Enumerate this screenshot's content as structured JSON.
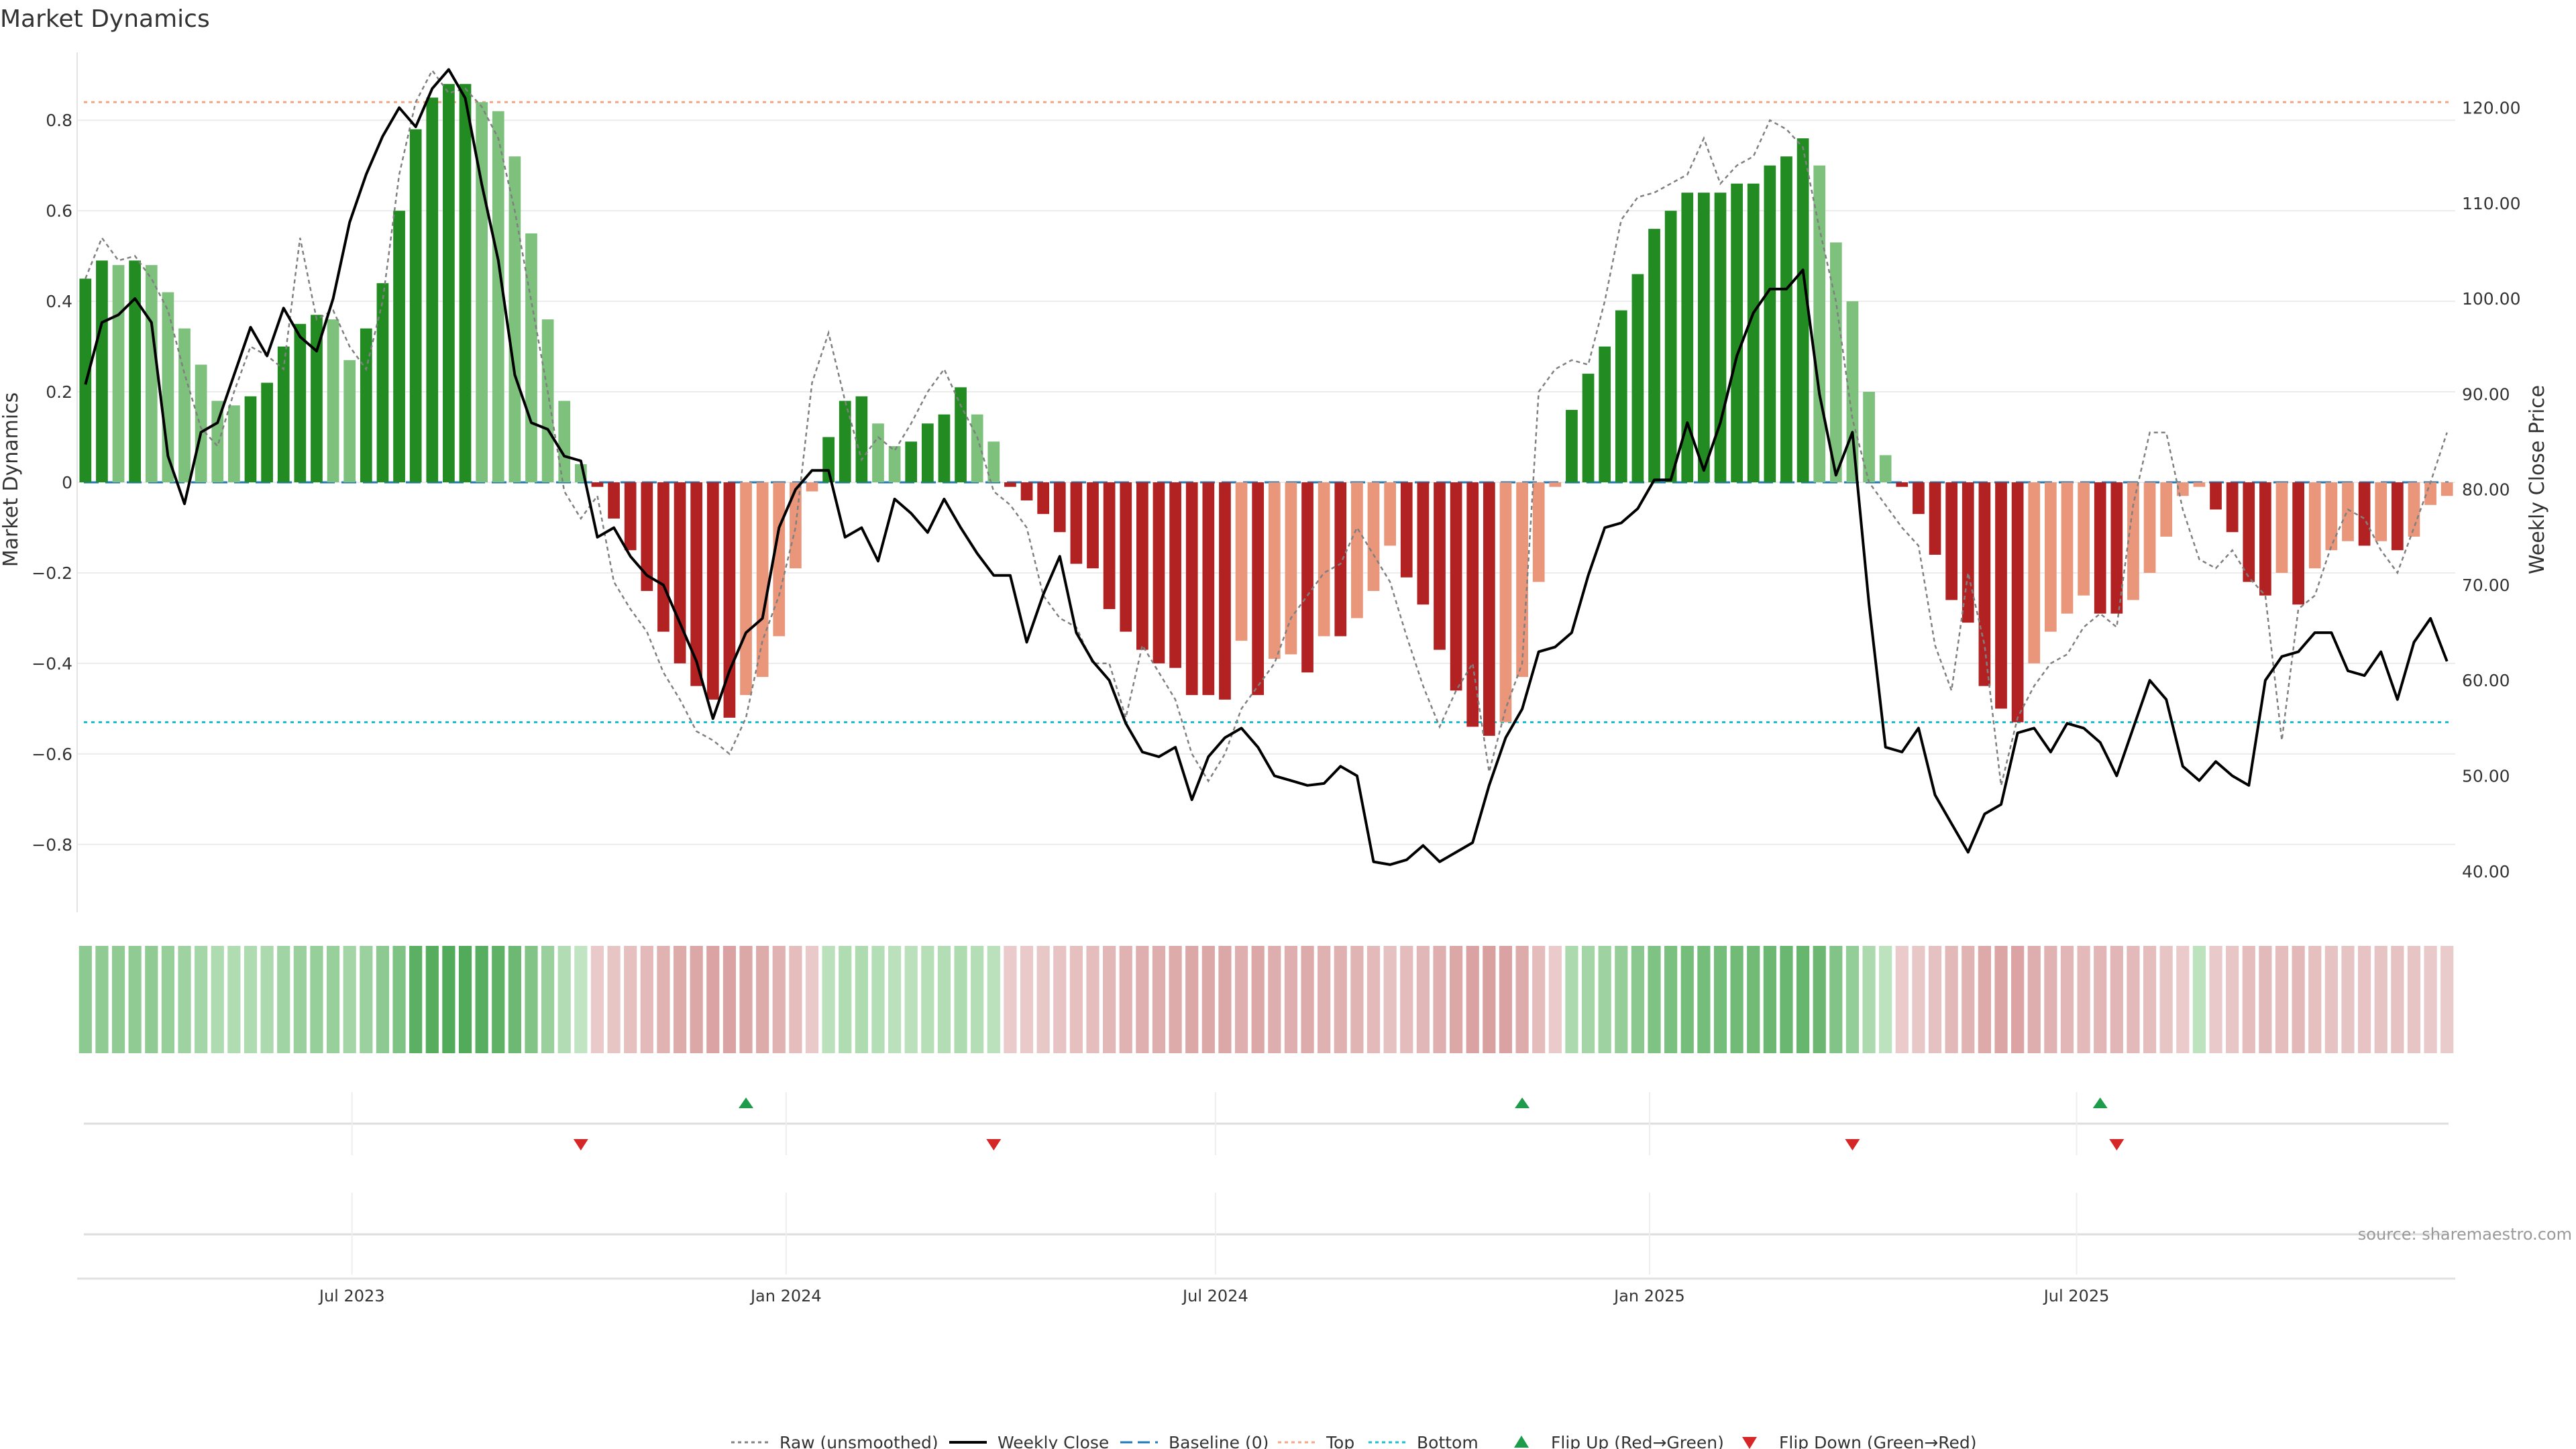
{
  "title": "Market Dynamics",
  "source": "source: sharemaestro.com",
  "colors": {
    "green_strong": "#228B22",
    "green_light": "#7DC17D",
    "red_strong": "#B22222",
    "red_light": "#E9967A",
    "close_line": "#000000",
    "raw_line": "#808080",
    "baseline": "#1F77B4",
    "top_line": "#F4A582",
    "bottom_line": "#17BECF",
    "flip_up": "#1E9B4B",
    "flip_down": "#D62728"
  },
  "legend": [
    {
      "label": "Raw (unsmoothed)",
      "icon": "dotted-gray-line"
    },
    {
      "label": "Weekly Close",
      "icon": "solid-black-line"
    },
    {
      "label": "Baseline (0)",
      "icon": "dashed-blue-line"
    },
    {
      "label": "Top",
      "icon": "dotted-orange-line"
    },
    {
      "label": "Bottom",
      "icon": "dotted-cyan-line"
    },
    {
      "label": "Flip Up (Red→Green)",
      "icon": "green-triangle-up"
    },
    {
      "label": "Flip Down (Green→Red)",
      "icon": "red-triangle-down"
    }
  ],
  "chart_data": {
    "type": "bar",
    "ylabel_left": "Market Dynamics",
    "ylabel_right": "Weekly Close Price",
    "ylim_left": [
      -0.95,
      0.95
    ],
    "ylim_right": [
      35.7,
      125.8
    ],
    "yticks_left": [
      "0.8",
      "0.6",
      "0.4",
      "0.2",
      "0",
      "−0.2",
      "−0.4",
      "−0.6",
      "−0.8"
    ],
    "ytick_values_left": [
      0.8,
      0.6,
      0.4,
      0.2,
      0,
      -0.2,
      -0.4,
      -0.6,
      -0.8
    ],
    "yticks_right": [
      "120.00",
      "110.00",
      "100.00",
      "90.00",
      "80.00",
      "70.00",
      "60.00",
      "50.00",
      "40.00"
    ],
    "ytick_values_right": [
      120,
      110,
      100,
      90,
      80,
      70,
      60,
      50,
      40
    ],
    "top_level": 0.84,
    "bottom_level": -0.53,
    "baseline": 0,
    "x_start": "2023-03-10",
    "week_count": 144,
    "xticks": [
      {
        "label": "Jul 2023",
        "date": "2023-07-01"
      },
      {
        "label": "Jan 2024",
        "date": "2024-01-01"
      },
      {
        "label": "Jul 2024",
        "date": "2024-07-01"
      },
      {
        "label": "Jan 2025",
        "date": "2025-01-01"
      },
      {
        "label": "Jul 2025",
        "date": "2025-07-01"
      }
    ],
    "bar_values": [
      0.45,
      0.49,
      0.48,
      0.49,
      0.48,
      0.42,
      0.34,
      0.26,
      0.18,
      0.17,
      0.19,
      0.22,
      0.3,
      0.35,
      0.37,
      0.36,
      0.27,
      0.34,
      0.44,
      0.6,
      0.78,
      0.85,
      0.88,
      0.88,
      0.84,
      0.82,
      0.72,
      0.55,
      0.36,
      0.18,
      0.04,
      -0.01,
      -0.08,
      -0.15,
      -0.24,
      -0.33,
      -0.4,
      -0.45,
      -0.48,
      -0.52,
      -0.47,
      -0.43,
      -0.34,
      -0.19,
      -0.02,
      0.1,
      0.18,
      0.19,
      0.13,
      0.08,
      0.09,
      0.13,
      0.15,
      0.21,
      0.15,
      0.09,
      -0.01,
      -0.04,
      -0.07,
      -0.11,
      -0.18,
      -0.19,
      -0.28,
      -0.33,
      -0.37,
      -0.4,
      -0.41,
      -0.47,
      -0.47,
      -0.48,
      -0.35,
      -0.47,
      -0.39,
      -0.38,
      -0.42,
      -0.34,
      -0.34,
      -0.3,
      -0.24,
      -0.14,
      -0.21,
      -0.27,
      -0.37,
      -0.46,
      -0.54,
      -0.56,
      -0.53,
      -0.43,
      -0.22,
      -0.01,
      0.16,
      0.24,
      0.3,
      0.38,
      0.46,
      0.56,
      0.6,
      0.64,
      0.64,
      0.64,
      0.66,
      0.66,
      0.7,
      0.72,
      0.76,
      0.7,
      0.53,
      0.4,
      0.2,
      0.06,
      -0.01,
      -0.07,
      -0.16,
      -0.26,
      -0.31,
      -0.45,
      -0.5,
      -0.53,
      -0.4,
      -0.33,
      -0.29,
      -0.25,
      -0.29,
      -0.29,
      -0.26,
      -0.2,
      -0.12,
      -0.03,
      -0.01,
      -0.06,
      -0.11,
      -0.22,
      -0.25,
      -0.2,
      -0.27,
      -0.19,
      -0.15,
      -0.13,
      -0.14,
      -0.13,
      -0.15,
      -0.12,
      -0.05,
      -0.03
    ],
    "raw_values": [
      0.45,
      0.54,
      0.49,
      0.5,
      0.45,
      0.38,
      0.24,
      0.12,
      0.08,
      0.2,
      0.3,
      0.28,
      0.25,
      0.54,
      0.36,
      0.38,
      0.3,
      0.25,
      0.4,
      0.68,
      0.84,
      0.91,
      0.86,
      0.87,
      0.83,
      0.76,
      0.6,
      0.4,
      0.2,
      -0.02,
      -0.08,
      -0.03,
      -0.22,
      -0.28,
      -0.33,
      -0.42,
      -0.48,
      -0.55,
      -0.57,
      -0.6,
      -0.52,
      -0.35,
      -0.25,
      -0.1,
      0.22,
      0.33,
      0.18,
      0.05,
      0.1,
      0.07,
      0.13,
      0.2,
      0.25,
      0.17,
      0.1,
      -0.02,
      -0.05,
      -0.1,
      -0.25,
      -0.3,
      -0.32,
      -0.4,
      -0.4,
      -0.52,
      -0.36,
      -0.42,
      -0.48,
      -0.6,
      -0.66,
      -0.6,
      -0.5,
      -0.45,
      -0.4,
      -0.3,
      -0.25,
      -0.2,
      -0.18,
      -0.1,
      -0.16,
      -0.22,
      -0.34,
      -0.45,
      -0.54,
      -0.46,
      -0.4,
      -0.64,
      -0.5,
      -0.4,
      0.2,
      0.25,
      0.27,
      0.26,
      0.4,
      0.58,
      0.63,
      0.64,
      0.66,
      0.68,
      0.76,
      0.66,
      0.7,
      0.72,
      0.8,
      0.78,
      0.74,
      0.56,
      0.4,
      0.14,
      0.0,
      -0.05,
      -0.1,
      -0.14,
      -0.36,
      -0.46,
      -0.2,
      -0.36,
      -0.67,
      -0.52,
      -0.45,
      -0.4,
      -0.38,
      -0.32,
      -0.29,
      -0.32,
      -0.05,
      0.11,
      0.11,
      -0.06,
      -0.17,
      -0.19,
      -0.15,
      -0.21,
      -0.25,
      -0.57,
      -0.28,
      -0.25,
      -0.14,
      -0.06,
      -0.08,
      -0.15,
      -0.2,
      -0.1,
      0.0,
      0.11
    ],
    "close_values": [
      91.0,
      97.5,
      98.3,
      100.0,
      97.5,
      83.5,
      78.5,
      86.0,
      87.0,
      92.0,
      97.0,
      94.0,
      99.0,
      96.0,
      94.5,
      100.0,
      108.0,
      113.0,
      117.0,
      120.0,
      118.0,
      122.0,
      124.0,
      121.0,
      112.0,
      104.0,
      92.0,
      87.0,
      86.3,
      83.5,
      83.0,
      75.0,
      76.0,
      73.0,
      71.0,
      70.0,
      66.0,
      62.0,
      56.0,
      61.0,
      65.0,
      66.5,
      76.0,
      80.0,
      82.0,
      82.0,
      75.0,
      76.0,
      72.5,
      79.0,
      77.5,
      75.5,
      79.0,
      76.0,
      73.3,
      71.0,
      71.0,
      64.0,
      69.0,
      73.0,
      65.0,
      62.0,
      60.0,
      55.5,
      52.5,
      52.0,
      53.0,
      47.5,
      52.0,
      54.0,
      55.0,
      53.0,
      50.0,
      49.5,
      49.0,
      49.2,
      51.0,
      50.0,
      41.0,
      40.7,
      41.2,
      42.7,
      41.0,
      42.0,
      43.0,
      49.0,
      54.0,
      57.0,
      63.0,
      63.5,
      65.0,
      71.0,
      76.0,
      76.5,
      78.0,
      81.0,
      81.0,
      87.0,
      82.0,
      87.0,
      94.0,
      98.5,
      101.0,
      101.0,
      103.0,
      90.0,
      81.5,
      86.0,
      68.0,
      53.0,
      52.5,
      55.0,
      48.0,
      45.0,
      42.0,
      46.0,
      47.0,
      54.5,
      55.0,
      52.5,
      55.5,
      55.0,
      53.5,
      50.0,
      55.0,
      60.0,
      58.0,
      51.0,
      49.5,
      51.5,
      50.0,
      49.0,
      60.0,
      62.5,
      63.0,
      65.0,
      65.0,
      61.0,
      60.5,
      63.0,
      58.0,
      64.0,
      66.5,
      62.0
    ],
    "regime_cells": [
      {
        "state": "green",
        "level": 0.42
      },
      {
        "state": "green",
        "level": 0.4
      },
      {
        "state": "green",
        "level": 0.4
      },
      {
        "state": "green",
        "level": 0.4
      },
      {
        "state": "green",
        "level": 0.4
      },
      {
        "state": "green",
        "level": 0.35
      },
      {
        "state": "green",
        "level": 0.3
      },
      {
        "state": "green",
        "level": 0.25
      },
      {
        "state": "green",
        "level": 0.18
      },
      {
        "state": "green",
        "level": 0.17
      },
      {
        "state": "green",
        "level": 0.18
      },
      {
        "state": "green",
        "level": 0.2
      },
      {
        "state": "green",
        "level": 0.28
      },
      {
        "state": "green",
        "level": 0.33
      },
      {
        "state": "green",
        "level": 0.35
      },
      {
        "state": "green",
        "level": 0.34
      },
      {
        "state": "green",
        "level": 0.26
      },
      {
        "state": "green",
        "level": 0.32
      },
      {
        "state": "green",
        "level": 0.42
      },
      {
        "state": "green",
        "level": 0.52
      },
      {
        "state": "green",
        "level": 0.78
      },
      {
        "state": "green",
        "level": 0.82
      },
      {
        "state": "green",
        "level": 0.85
      },
      {
        "state": "green",
        "level": 0.85
      },
      {
        "state": "green",
        "level": 0.8
      },
      {
        "state": "green",
        "level": 0.76
      },
      {
        "state": "green",
        "level": 0.65
      },
      {
        "state": "green",
        "level": 0.5
      },
      {
        "state": "green",
        "level": 0.33
      },
      {
        "state": "green",
        "level": 0.16
      },
      {
        "state": "green",
        "level": 0.05
      },
      {
        "state": "red",
        "level": 0.08
      },
      {
        "state": "red",
        "level": 0.12
      },
      {
        "state": "red",
        "level": 0.18
      },
      {
        "state": "red",
        "level": 0.25
      },
      {
        "state": "red",
        "level": 0.32
      },
      {
        "state": "red",
        "level": 0.4
      },
      {
        "state": "red",
        "level": 0.44
      },
      {
        "state": "red",
        "level": 0.48
      },
      {
        "state": "red",
        "level": 0.5
      },
      {
        "state": "red",
        "level": 0.44
      },
      {
        "state": "red",
        "level": 0.4
      },
      {
        "state": "red",
        "level": 0.32
      },
      {
        "state": "red",
        "level": 0.2
      },
      {
        "state": "red",
        "level": 0.08
      },
      {
        "state": "green",
        "level": 0.1
      },
      {
        "state": "green",
        "level": 0.17
      },
      {
        "state": "green",
        "level": 0.18
      },
      {
        "state": "green",
        "level": 0.14
      },
      {
        "state": "green",
        "level": 0.1
      },
      {
        "state": "green",
        "level": 0.1
      },
      {
        "state": "green",
        "level": 0.13
      },
      {
        "state": "green",
        "level": 0.15
      },
      {
        "state": "green",
        "level": 0.18
      },
      {
        "state": "green",
        "level": 0.14
      },
      {
        "state": "green",
        "level": 0.1
      },
      {
        "state": "red",
        "level": 0.06
      },
      {
        "state": "red",
        "level": 0.08
      },
      {
        "state": "red",
        "level": 0.1
      },
      {
        "state": "red",
        "level": 0.14
      },
      {
        "state": "red",
        "level": 0.18
      },
      {
        "state": "red",
        "level": 0.2
      },
      {
        "state": "red",
        "level": 0.27
      },
      {
        "state": "red",
        "level": 0.32
      },
      {
        "state": "red",
        "level": 0.36
      },
      {
        "state": "red",
        "level": 0.38
      },
      {
        "state": "red",
        "level": 0.4
      },
      {
        "state": "red",
        "level": 0.44
      },
      {
        "state": "red",
        "level": 0.44
      },
      {
        "state": "red",
        "level": 0.44
      },
      {
        "state": "red",
        "level": 0.36
      },
      {
        "state": "red",
        "level": 0.44
      },
      {
        "state": "red",
        "level": 0.38
      },
      {
        "state": "red",
        "level": 0.37
      },
      {
        "state": "red",
        "level": 0.4
      },
      {
        "state": "red",
        "level": 0.33
      },
      {
        "state": "red",
        "level": 0.33
      },
      {
        "state": "red",
        "level": 0.3
      },
      {
        "state": "red",
        "level": 0.25
      },
      {
        "state": "red",
        "level": 0.16
      },
      {
        "state": "red",
        "level": 0.22
      },
      {
        "state": "red",
        "level": 0.27
      },
      {
        "state": "red",
        "level": 0.36
      },
      {
        "state": "red",
        "level": 0.44
      },
      {
        "state": "red",
        "level": 0.5
      },
      {
        "state": "red",
        "level": 0.52
      },
      {
        "state": "red",
        "level": 0.5
      },
      {
        "state": "red",
        "level": 0.4
      },
      {
        "state": "red",
        "level": 0.22
      },
      {
        "state": "red",
        "level": 0.06
      },
      {
        "state": "green",
        "level": 0.2
      },
      {
        "state": "green",
        "level": 0.26
      },
      {
        "state": "green",
        "level": 0.3
      },
      {
        "state": "green",
        "level": 0.36
      },
      {
        "state": "green",
        "level": 0.44
      },
      {
        "state": "green",
        "level": 0.52
      },
      {
        "state": "green",
        "level": 0.56
      },
      {
        "state": "green",
        "level": 0.6
      },
      {
        "state": "green",
        "level": 0.6
      },
      {
        "state": "green",
        "level": 0.6
      },
      {
        "state": "green",
        "level": 0.62
      },
      {
        "state": "green",
        "level": 0.62
      },
      {
        "state": "green",
        "level": 0.66
      },
      {
        "state": "green",
        "level": 0.68
      },
      {
        "state": "green",
        "level": 0.7
      },
      {
        "state": "green",
        "level": 0.66
      },
      {
        "state": "green",
        "level": 0.5
      },
      {
        "state": "green",
        "level": 0.38
      },
      {
        "state": "green",
        "level": 0.2
      },
      {
        "state": "green",
        "level": 0.08
      },
      {
        "state": "red",
        "level": 0.06
      },
      {
        "state": "red",
        "level": 0.1
      },
      {
        "state": "red",
        "level": 0.16
      },
      {
        "state": "red",
        "level": 0.26
      },
      {
        "state": "red",
        "level": 0.3
      },
      {
        "state": "red",
        "level": 0.42
      },
      {
        "state": "red",
        "level": 0.46
      },
      {
        "state": "red",
        "level": 0.48
      },
      {
        "state": "red",
        "level": 0.38
      },
      {
        "state": "red",
        "level": 0.32
      },
      {
        "state": "red",
        "level": 0.28
      },
      {
        "state": "red",
        "level": 0.25
      },
      {
        "state": "red",
        "level": 0.28
      },
      {
        "state": "red",
        "level": 0.28
      },
      {
        "state": "red",
        "level": 0.25
      },
      {
        "state": "red",
        "level": 0.2
      },
      {
        "state": "red",
        "level": 0.12
      },
      {
        "state": "red",
        "level": 0.06
      },
      {
        "state": "green",
        "level": 0.08
      },
      {
        "state": "red",
        "level": 0.08
      },
      {
        "state": "red",
        "level": 0.11
      },
      {
        "state": "red",
        "level": 0.2
      },
      {
        "state": "red",
        "level": 0.24
      },
      {
        "state": "red",
        "level": 0.2
      },
      {
        "state": "red",
        "level": 0.26
      },
      {
        "state": "red",
        "level": 0.18
      },
      {
        "state": "red",
        "level": 0.15
      },
      {
        "state": "red",
        "level": 0.13
      },
      {
        "state": "red",
        "level": 0.14
      },
      {
        "state": "red",
        "level": 0.13
      },
      {
        "state": "red",
        "level": 0.15
      },
      {
        "state": "red",
        "level": 0.12
      },
      {
        "state": "red",
        "level": 0.07
      },
      {
        "state": "red",
        "level": 0.05
      }
    ],
    "flip_up_dates": [
      "2023-12-15",
      "2024-11-08",
      "2025-07-11"
    ],
    "flip_down_dates": [
      "2023-10-06",
      "2024-03-29",
      "2025-03-28",
      "2025-07-18"
    ]
  }
}
